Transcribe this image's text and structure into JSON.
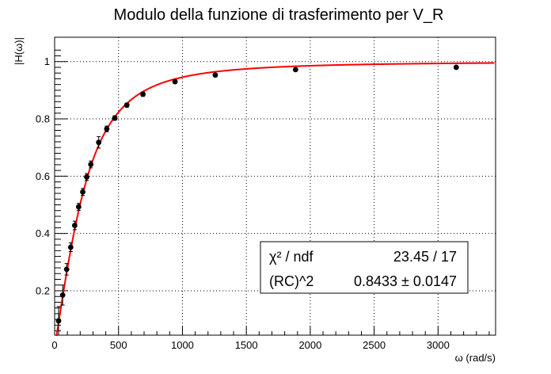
{
  "chart_data": {
    "type": "scatter",
    "title": "Modulo della funzione di trasferimento per V_R",
    "xlabel": "ω (rad/s)",
    "ylabel": "|H(ω)|",
    "xlim": [
      0,
      3450
    ],
    "ylim": [
      0.045,
      1.085
    ],
    "x_ticks": [
      0,
      500,
      1000,
      1500,
      2000,
      2500,
      3000
    ],
    "y_ticks": [
      0.2,
      0.4,
      0.6,
      0.8,
      1
    ],
    "grid": true,
    "points": [
      {
        "x": 31,
        "y": 0.095,
        "err": 0.05
      },
      {
        "x": 63,
        "y": 0.185,
        "err": 0.035
      },
      {
        "x": 94,
        "y": 0.275,
        "err": 0.02
      },
      {
        "x": 126,
        "y": 0.352,
        "err": 0.015
      },
      {
        "x": 157,
        "y": 0.428,
        "err": 0.015
      },
      {
        "x": 188,
        "y": 0.493,
        "err": 0.012
      },
      {
        "x": 220,
        "y": 0.545,
        "err": 0.012
      },
      {
        "x": 251,
        "y": 0.597,
        "err": 0.012
      },
      {
        "x": 283,
        "y": 0.641,
        "err": 0.012
      },
      {
        "x": 345,
        "y": 0.718,
        "err": 0.02
      },
      {
        "x": 408,
        "y": 0.765,
        "err": 0.01
      },
      {
        "x": 471,
        "y": 0.803,
        "err": 0.008
      },
      {
        "x": 565,
        "y": 0.848,
        "err": 0.007
      },
      {
        "x": 691,
        "y": 0.886,
        "err": 0.007
      },
      {
        "x": 942,
        "y": 0.93,
        "err": 0.006
      },
      {
        "x": 1257,
        "y": 0.953,
        "err": 0.006
      },
      {
        "x": 1885,
        "y": 0.972,
        "err": 0.005
      },
      {
        "x": 3142,
        "y": 0.98,
        "err": 0.005
      }
    ],
    "fit": {
      "name": "fit",
      "color": "#ff0000",
      "x_range": [
        10,
        3440
      ]
    },
    "point_color": "#000000",
    "stats": {
      "row1_label": "χ² / ndf",
      "row1_value": "23.45 / 17",
      "row2_label": "(RC)^2",
      "row2_value": "0.8433 ± 0.0147"
    }
  }
}
